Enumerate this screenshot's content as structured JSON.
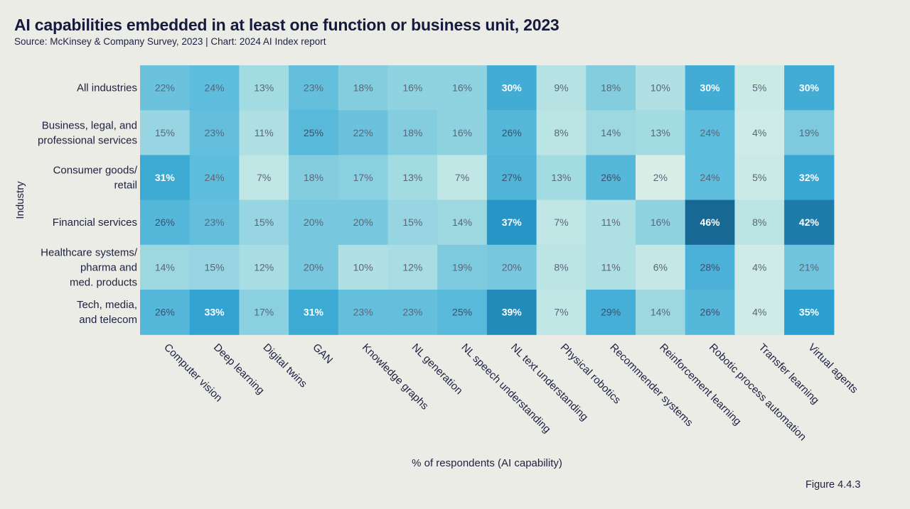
{
  "title": "AI capabilities embedded in at least one function or business unit, 2023",
  "subtitle": "Source: McKinsey & Company Survey, 2023 | Chart: 2024 AI Index report",
  "figure_label": "Figure 4.4.3",
  "chart_data": {
    "type": "heatmap",
    "xlabel": "% of respondents (AI capability)",
    "ylabel": "Industry",
    "x_categories": [
      "Computer vision",
      "Deep learning",
      "Digital twins",
      "GAN",
      "Knowledge graphs",
      "NL generation",
      "NL speech understanding",
      "NL text understanding",
      "Physical robotics",
      "Recommender systems",
      "Reinforcement learning",
      "Robotic process automation",
      "Transfer learning",
      "Virtual agents"
    ],
    "y_categories": [
      [
        "All industries"
      ],
      [
        "Business, legal, and",
        "professional services"
      ],
      [
        "Consumer goods/",
        "retail"
      ],
      [
        "Financial services"
      ],
      [
        "Healthcare systems/",
        "pharma and",
        "med. products"
      ],
      [
        "Tech, media,",
        "and telecom"
      ]
    ],
    "values": [
      [
        22,
        24,
        13,
        23,
        18,
        16,
        16,
        30,
        9,
        18,
        10,
        30,
        5,
        30
      ],
      [
        15,
        23,
        11,
        25,
        22,
        18,
        16,
        26,
        8,
        14,
        13,
        24,
        4,
        19
      ],
      [
        31,
        24,
        7,
        18,
        17,
        13,
        7,
        27,
        13,
        26,
        2,
        24,
        5,
        32
      ],
      [
        26,
        23,
        15,
        20,
        20,
        15,
        14,
        37,
        7,
        11,
        16,
        46,
        8,
        42
      ],
      [
        14,
        15,
        12,
        20,
        10,
        12,
        19,
        20,
        8,
        11,
        6,
        28,
        4,
        21
      ],
      [
        26,
        33,
        17,
        31,
        23,
        23,
        25,
        39,
        7,
        29,
        14,
        26,
        4,
        35
      ]
    ],
    "value_suffix": "%",
    "color_scale": [
      "#d8efe8",
      "#a3dbe2",
      "#5ebcdc",
      "#2a9fd0",
      "#186894"
    ]
  }
}
